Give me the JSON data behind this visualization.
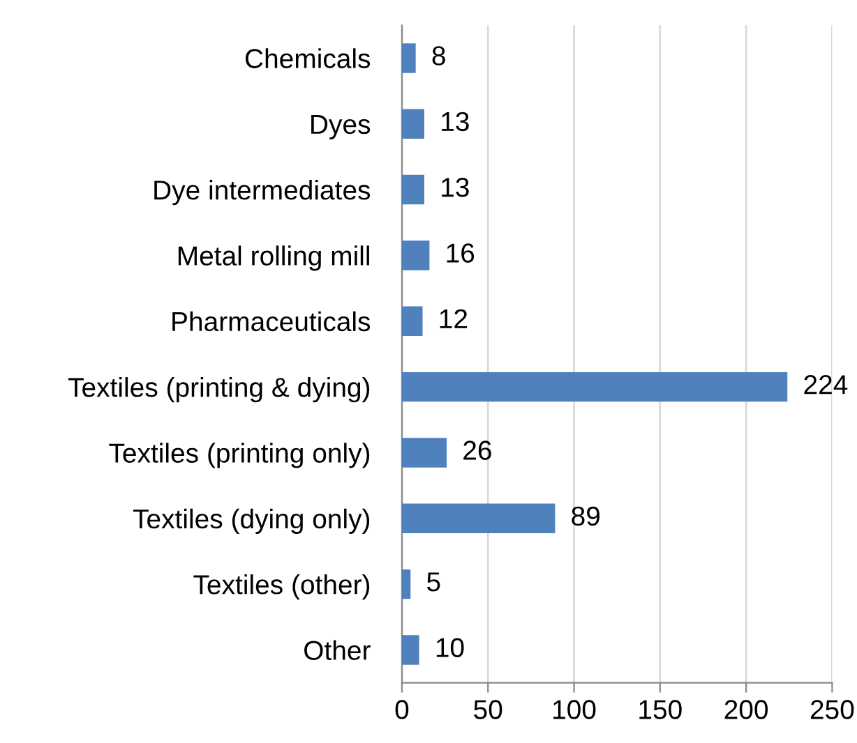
{
  "chart_data": {
    "type": "bar",
    "orientation": "horizontal",
    "categories": [
      "Chemicals",
      "Dyes",
      "Dye intermediates",
      "Metal rolling mill",
      "Pharmaceuticals",
      "Textiles (printing & dying)",
      "Textiles (printing only)",
      "Textiles (dying only)",
      "Textiles (other)",
      "Other"
    ],
    "values": [
      8,
      13,
      13,
      16,
      12,
      224,
      26,
      89,
      5,
      10
    ],
    "color": "#4f81bd",
    "xlim": [
      0,
      250
    ],
    "xticks": [
      0,
      50,
      100,
      150,
      200,
      250
    ],
    "grid": "x",
    "data_labels": true,
    "legend": false
  }
}
